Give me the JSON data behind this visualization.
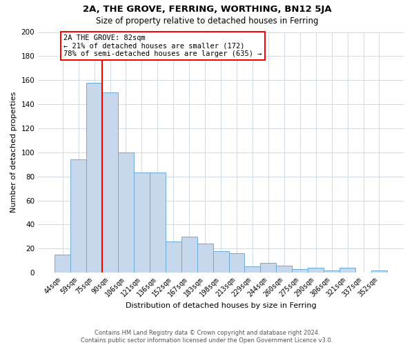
{
  "title": "2A, THE GROVE, FERRING, WORTHING, BN12 5JA",
  "subtitle": "Size of property relative to detached houses in Ferring",
  "xlabel": "Distribution of detached houses by size in Ferring",
  "ylabel": "Number of detached properties",
  "footer_line1": "Contains HM Land Registry data © Crown copyright and database right 2024.",
  "footer_line2": "Contains public sector information licensed under the Open Government Licence v3.0.",
  "bar_labels": [
    "44sqm",
    "59sqm",
    "75sqm",
    "90sqm",
    "106sqm",
    "121sqm",
    "136sqm",
    "152sqm",
    "167sqm",
    "183sqm",
    "198sqm",
    "213sqm",
    "229sqm",
    "244sqm",
    "260sqm",
    "275sqm",
    "290sqm",
    "306sqm",
    "321sqm",
    "337sqm",
    "352sqm"
  ],
  "bar_values": [
    15,
    94,
    158,
    150,
    100,
    83,
    83,
    26,
    30,
    24,
    18,
    16,
    5,
    8,
    6,
    3,
    4,
    2,
    4,
    0,
    2
  ],
  "bar_color": "#c8d8ec",
  "bar_edge_color": "#6aaad4",
  "vline_color": "red",
  "vline_x_index": 2.5,
  "ylim": [
    0,
    200
  ],
  "yticks": [
    0,
    20,
    40,
    60,
    80,
    100,
    120,
    140,
    160,
    180,
    200
  ],
  "annotation_title": "2A THE GROVE: 82sqm",
  "annotation_line1": "← 21% of detached houses are smaller (172)",
  "annotation_line2": "78% of semi-detached houses are larger (635) →",
  "annotation_box_color": "white",
  "annotation_box_edge_color": "red",
  "grid_color": "#c8d4de",
  "bg_color": "white"
}
